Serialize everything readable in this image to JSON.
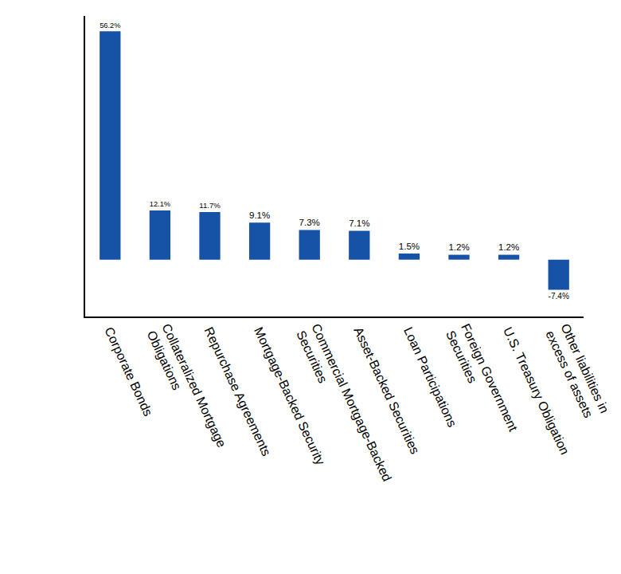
{
  "chart_data": {
    "type": "bar",
    "categories": [
      "Corporate Bonds",
      "Collateralized Mortgage Obligations",
      "Repurchase Agreements",
      "Mortgage-Backed Security",
      "Commercial Mortgage-Backed Securities",
      "Asset-Backed Securities",
      "Loan Participations",
      "Foreign Government Securities",
      "U.S. Treasury Obligation",
      "Other liabilities in excess of assets"
    ],
    "values": [
      56.2,
      12.1,
      11.7,
      9.1,
      7.3,
      7.1,
      1.5,
      1.2,
      1.2,
      -7.4
    ],
    "value_labels": [
      "56.2%",
      "12.1%",
      "11.7%",
      "9.1%",
      "7.3%",
      "7.1%",
      "1.5%",
      "1.2%",
      "1.2%",
      "-7.4%"
    ],
    "color": "#1652a6",
    "ylim": [
      -14,
      60
    ],
    "data_labels": true,
    "tick_labels": "x",
    "grid": false
  }
}
